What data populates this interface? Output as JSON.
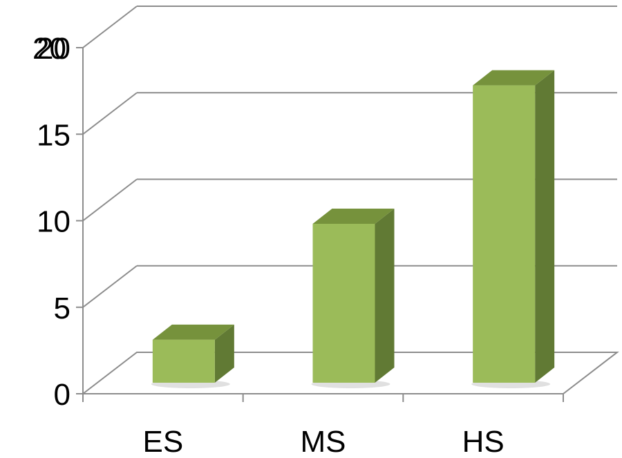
{
  "chart_data": {
    "type": "bar",
    "categories": [
      "ES",
      "MS",
      "HS"
    ],
    "values": [
      3.6,
      10.3,
      18.3
    ],
    "ylim": [
      0,
      20
    ],
    "y_ticks": [
      "0",
      "5",
      "10",
      "15",
      "20"
    ],
    "y_ticks_extra": [
      "20"
    ],
    "grid": true,
    "legend": "none",
    "title": "",
    "xlabel": "",
    "ylabel": ""
  },
  "colors": {
    "bar_front": "#9bbb59",
    "bar_top": "#76923c",
    "bar_side": "#617a34",
    "grid": "#8c8c8c",
    "text": "#000000"
  }
}
